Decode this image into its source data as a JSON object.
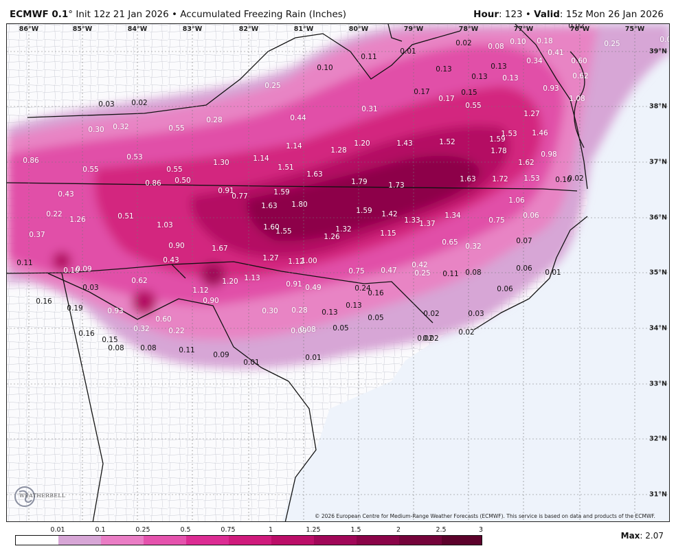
{
  "header": {
    "model": "ECMWF 0.1",
    "model_suffix": "° Init 12z 21 Jan 2026 • Accumulated Freezing Rain (Inches)",
    "hour_label": "Hour",
    "hour_value": ": 123 • ",
    "valid_label": "Valid",
    "valid_value": ": 15z Mon 26 Jan 2026"
  },
  "axes": {
    "lon": [
      "86°W",
      "85°W",
      "84°W",
      "83°W",
      "82°W",
      "81°W",
      "80°W",
      "79°W",
      "78°W",
      "77°W",
      "76°W",
      "75°W"
    ],
    "lat": [
      "39°N",
      "38°N",
      "37°N",
      "36°N",
      "35°N",
      "34°N",
      "33°N",
      "32°N",
      "31°N"
    ]
  },
  "values": [
    "0.01",
    "0.02",
    "0.08",
    "0.10",
    "0.18",
    "0.03",
    "0.11",
    "0.10",
    "0.02",
    "0.13",
    "0.13",
    "0.13",
    "0.34",
    "0.41",
    "0.60",
    "0.25",
    "0.25",
    "0.17",
    "0.15",
    "0.13",
    "0.62",
    "0.03",
    "0.02",
    "0.17",
    "0.55",
    "0.93",
    "1.08",
    "0.30",
    "0.32",
    "0.55",
    "0.28",
    "0.44",
    "0.31",
    "1.27",
    "1.53",
    "1.46",
    "1.59",
    "0.98",
    "1.14",
    "1.28",
    "1.20",
    "1.43",
    "1.52",
    "1.78",
    "0.86",
    "0.53",
    "1.30",
    "1.14",
    "1.62",
    "0.55",
    "0.55",
    "1.51",
    "1.63",
    "1.79",
    "1.73",
    "1.63",
    "1.72",
    "1.53",
    "0.10",
    "0.02",
    "0.86",
    "0.50",
    "0.91",
    "0.43",
    "0.77",
    "1.59",
    "1.80",
    "1.06",
    "1.63",
    "0.22",
    "1.26",
    "0.51",
    "1.59",
    "1.42",
    "1.34",
    "0.06",
    "1.03",
    "1.60",
    "1.55",
    "1.32",
    "1.33",
    "1.37",
    "0.75",
    "0.37",
    "0.90",
    "1.67",
    "1.26",
    "1.15",
    "0.65",
    "0.32",
    "0.07",
    "0.43",
    "1.27",
    "1.12",
    "1.00",
    "0.11",
    "0.10",
    "0.09",
    "0.75",
    "0.47",
    "0.42",
    "0.25",
    "0.11",
    "0.08",
    "0.06",
    "0.01",
    "0.62",
    "1.20",
    "1.13",
    "0.91",
    "0.49",
    "0.24",
    "0.03",
    "0.16",
    "1.12",
    "0.06",
    "0.16",
    "0.90",
    "0.13",
    "0.02",
    "0.02",
    "0.03",
    "0.19",
    "0.93",
    "0.30",
    "0.28",
    "0.13",
    "0.05",
    "0.60",
    "0.32",
    "0.22",
    "0.09",
    "0.08",
    "0.05",
    "0.02",
    "0.02",
    "0.16",
    "0.15",
    "0.08",
    "0.08",
    "0.11",
    "0.09",
    "0.01",
    "0.01"
  ],
  "logo_text": "WEATHERBELL",
  "copyright": "© 2026 European Centre for Medium-Range Weather Forecasts (ECMWF). This service is based on data and products of the ECMWF.",
  "colorbar": {
    "ticks": [
      "0.01",
      "0.1",
      "0.25",
      "0.5",
      "0.75",
      "1",
      "1.25",
      "1.5",
      "2",
      "2.5",
      "3"
    ],
    "colors": [
      "#ffffff",
      "#d7a6d6",
      "#ea7dc5",
      "#e552ad",
      "#dc2c93",
      "#cf1a7c",
      "#bb0e68",
      "#a00758",
      "#8a0448",
      "#74033a",
      "#5c022b"
    ]
  },
  "max_label": "Max",
  "max_value": ": 2.07"
}
